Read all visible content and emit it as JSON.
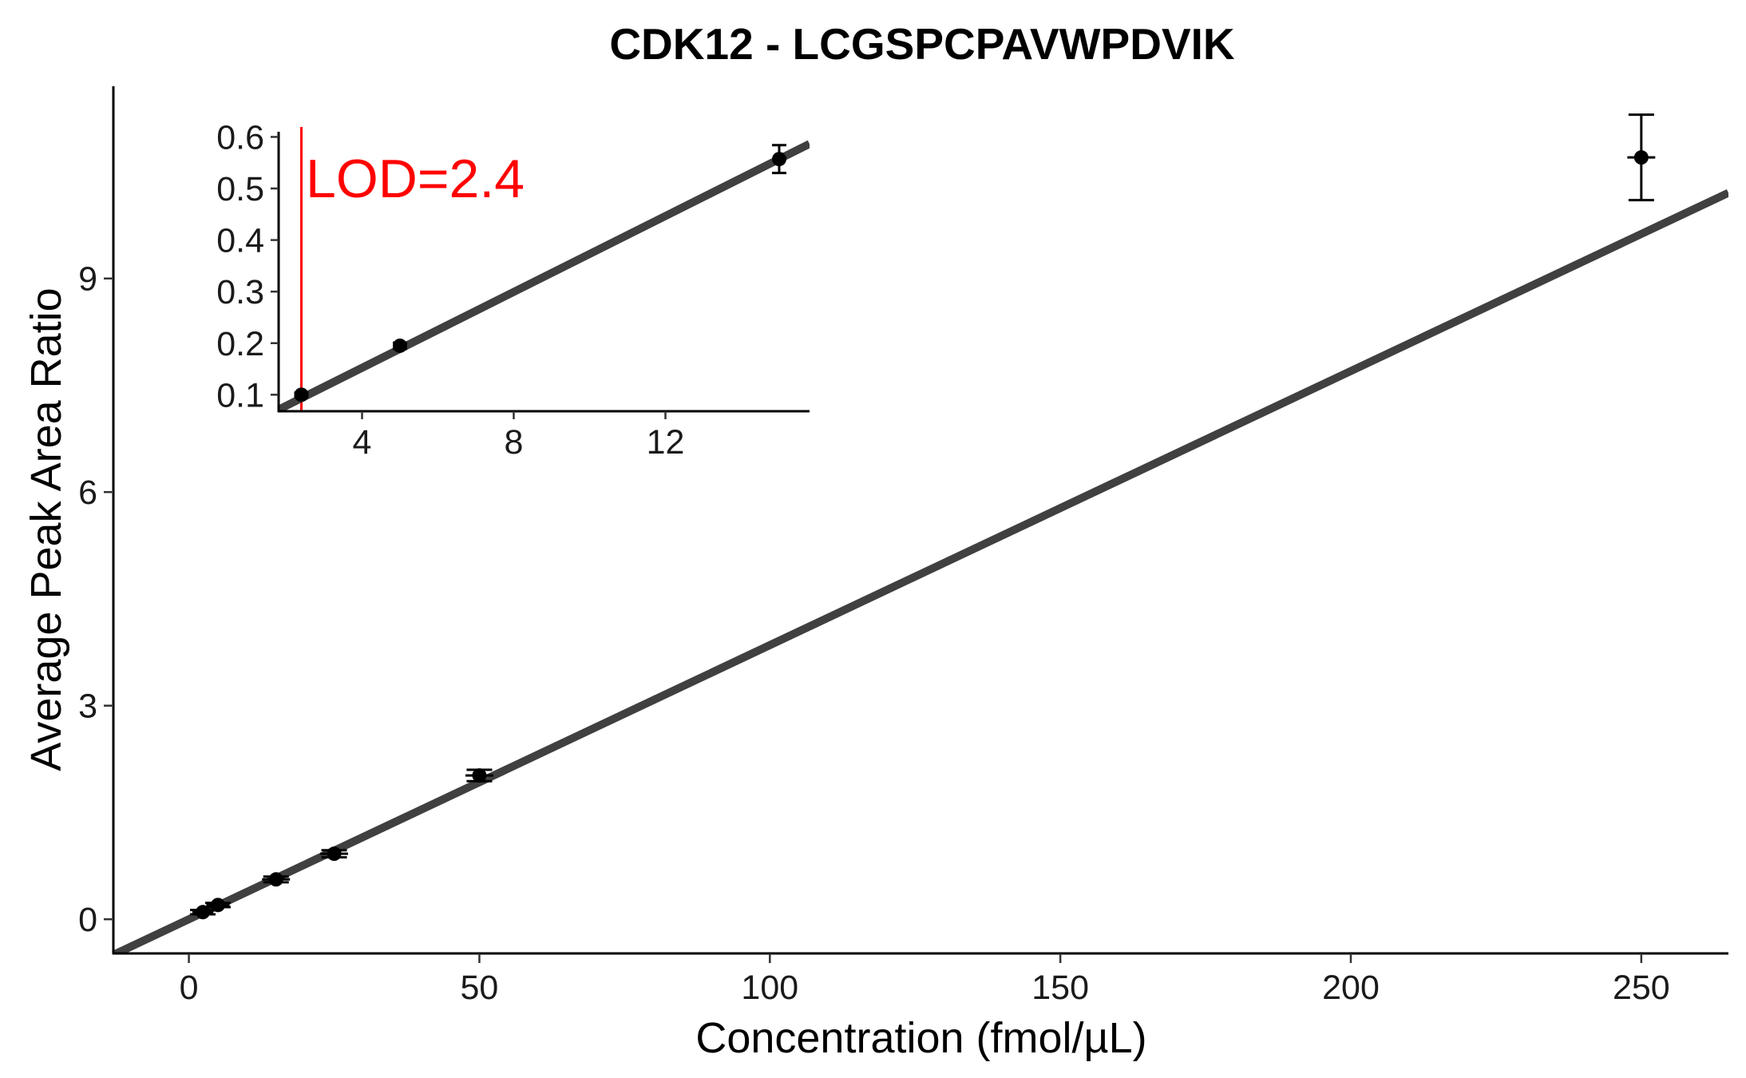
{
  "chart_data": {
    "type": "scatter",
    "title": "CDK12 - LCGSPCPAVWPDVIK",
    "xlabel": "Concentration (fmol/µL)",
    "ylabel": "Average Peak Area Ratio",
    "colors": {
      "points": "#000000",
      "fit_line": "#404040",
      "lod": "#ff0000"
    },
    "main": {
      "xlim": [
        -13,
        265
      ],
      "ylim": [
        -0.48,
        11.7
      ],
      "xticks": [
        0,
        50,
        100,
        150,
        200,
        250
      ],
      "yticks": [
        0,
        3,
        6,
        9
      ],
      "points": [
        {
          "x": 2.4,
          "y": 0.1,
          "xerr": 1.8,
          "yerr": 0.03
        },
        {
          "x": 5,
          "y": 0.2,
          "xerr": 2.0,
          "yerr": 0.03
        },
        {
          "x": 15,
          "y": 0.56,
          "xerr": 2.4,
          "yerr": 0.04
        },
        {
          "x": 25,
          "y": 0.92,
          "xerr": 2.4,
          "yerr": 0.05
        },
        {
          "x": 50,
          "y": 2.02,
          "xerr": 2.4,
          "yerr": 0.08
        },
        {
          "x": 250,
          "y": 10.7,
          "xerr": 2.4,
          "yerr": 0.6
        }
      ],
      "fit": {
        "slope": 0.0385,
        "intercept": 0.0
      }
    },
    "inset": {
      "xlim": [
        1.8,
        15.8
      ],
      "ylim": [
        0.068,
        0.61
      ],
      "xticks": [
        4,
        8,
        12
      ],
      "yticks": [
        0.1,
        0.2,
        0.3,
        0.4,
        0.5,
        0.6
      ],
      "points": [
        {
          "x": 2.4,
          "y": 0.1,
          "yerr": 0.004
        },
        {
          "x": 5,
          "y": 0.195,
          "yerr": 0.006
        },
        {
          "x": 15,
          "y": 0.557,
          "yerr": 0.027
        }
      ],
      "fit": {
        "slope": 0.0368,
        "intercept": 0.005
      },
      "lod": {
        "x": 2.4,
        "label": "LOD=2.4"
      }
    }
  }
}
